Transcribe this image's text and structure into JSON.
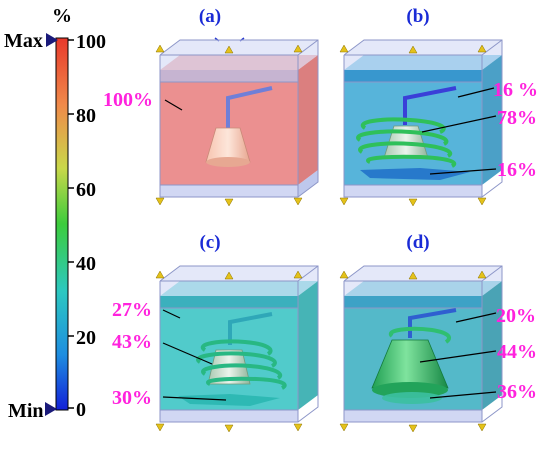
{
  "colorbar": {
    "unit": "%",
    "max_label": "Max",
    "min_label": "Min",
    "ticks": [
      "100",
      "80",
      "60",
      "40",
      "20",
      "0"
    ]
  },
  "panels": [
    {
      "id": "a",
      "title": "(a)",
      "labels": [
        "100%"
      ]
    },
    {
      "id": "b",
      "title": "(b)",
      "labels": [
        "16 %",
        "78%",
        "16%"
      ]
    },
    {
      "id": "c",
      "title": "(c)",
      "labels": [
        "27%",
        "43%",
        "30%"
      ]
    },
    {
      "id": "d",
      "title": "(d)",
      "labels": [
        "20%",
        "44%",
        "36%"
      ]
    }
  ],
  "colors": {
    "label_magenta": "#ff22dd",
    "title_blue": "#1a2bd6",
    "panel_a_fill": "#e87c7c",
    "panel_b_fill": "#3aa7d4",
    "panel_c_fill": "#33c2c2",
    "panel_d_fill": "#36adc0"
  }
}
